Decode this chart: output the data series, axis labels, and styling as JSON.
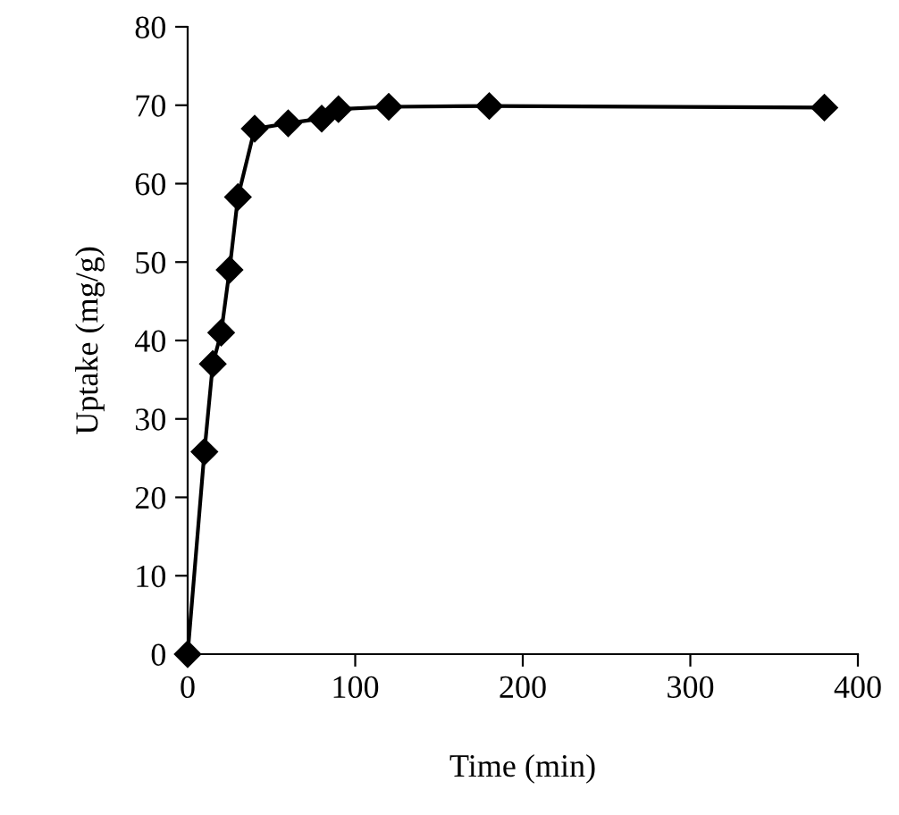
{
  "chart_data": {
    "type": "line",
    "xlabel": "Time (min)",
    "ylabel": "Uptake (mg/g)",
    "x": [
      0,
      10,
      15,
      20,
      25,
      30,
      40,
      60,
      80,
      90,
      120,
      180,
      380
    ],
    "series": [
      {
        "color": "#000000",
        "values": [
          0,
          25.8,
          37,
          41,
          49,
          58.3,
          67,
          67.7,
          68.3,
          69.5,
          69.8,
          69.9,
          69.7
        ]
      }
    ],
    "xlim": [
      0,
      400
    ],
    "xticks": [
      0,
      100,
      200,
      300,
      400
    ],
    "ylim": [
      0,
      80
    ],
    "yticks": [
      0,
      10,
      20,
      30,
      40,
      50,
      60,
      70,
      80
    ],
    "marker": "diamond",
    "line_style": "solid",
    "grid": false,
    "legend": false
  }
}
